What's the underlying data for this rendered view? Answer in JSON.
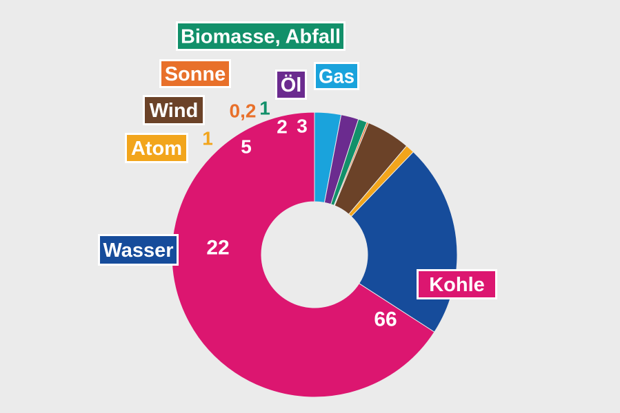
{
  "chart_data": {
    "type": "pie",
    "variant": "donut",
    "slices": [
      {
        "label": "Gas",
        "value": 3,
        "display": "3",
        "color": "#1aa3dc"
      },
      {
        "label": "Öl",
        "value": 2,
        "display": "2",
        "color": "#6b2b8f"
      },
      {
        "label": "Biomasse, Abfall",
        "value": 1,
        "display": "1",
        "color": "#12906a"
      },
      {
        "label": "Sonne",
        "value": 0.2,
        "display": "0,2",
        "color": "#e8702a"
      },
      {
        "label": "Wind",
        "value": 5,
        "display": "5",
        "color": "#6b4228"
      },
      {
        "label": "Atom",
        "value": 1,
        "display": "1",
        "color": "#f2a51c"
      },
      {
        "label": "Wasser",
        "value": 22,
        "display": "22",
        "color": "#164c9b"
      },
      {
        "label": "Kohle",
        "value": 66,
        "display": "66",
        "color": "#dc1670"
      }
    ]
  }
}
